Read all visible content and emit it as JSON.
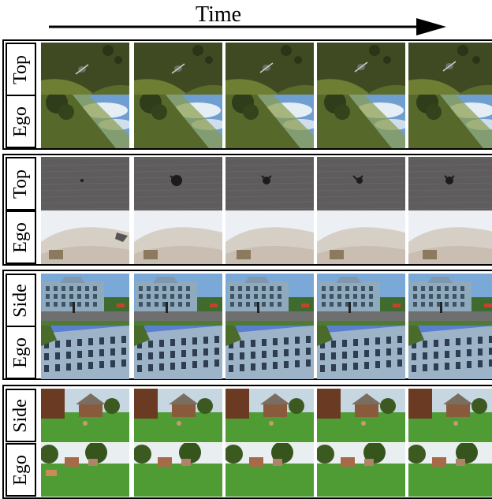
{
  "header": {
    "time_label": "Time"
  },
  "groups": [
    {
      "rows": [
        {
          "label": "Top",
          "scene": "grass-top"
        },
        {
          "label": "Ego",
          "scene": "grass-ego"
        }
      ]
    },
    {
      "rows": [
        {
          "label": "Top",
          "scene": "rock-top"
        },
        {
          "label": "Ego",
          "scene": "sand-ego"
        }
      ]
    },
    {
      "rows": [
        {
          "label": "Side",
          "scene": "building-side"
        },
        {
          "label": "Ego",
          "scene": "building-ego"
        }
      ]
    },
    {
      "rows": [
        {
          "label": "Side",
          "scene": "village-side"
        },
        {
          "label": "Ego",
          "scene": "village-ego"
        }
      ]
    }
  ],
  "frames_per_row": 5,
  "colors": {
    "grass_dark": "#3f4a22",
    "grass_light": "#7a8c3a",
    "sky": "#6f9fd0",
    "rock": "#5e5c5c",
    "sand": "#d6cfc6",
    "building": "#8fa9bd",
    "lawn": "#4f9c35"
  }
}
